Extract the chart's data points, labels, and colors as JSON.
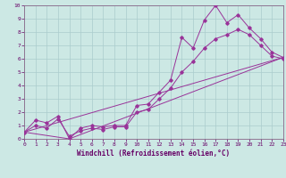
{
  "xlabel": "Windchill (Refroidissement éolien,°C)",
  "bg_color": "#cce8e4",
  "grid_color": "#aacccc",
  "line_color": "#993399",
  "xlim": [
    0,
    23
  ],
  "ylim": [
    0,
    10
  ],
  "xticks": [
    0,
    1,
    2,
    3,
    4,
    5,
    6,
    7,
    8,
    9,
    10,
    11,
    12,
    13,
    14,
    15,
    16,
    17,
    18,
    19,
    20,
    21,
    22,
    23
  ],
  "yticks": [
    0,
    1,
    2,
    3,
    4,
    5,
    6,
    7,
    8,
    9,
    10
  ],
  "series1_x": [
    0,
    1,
    2,
    3,
    4,
    5,
    6,
    7,
    8,
    9,
    10,
    11,
    12,
    13,
    14,
    15,
    16,
    17,
    18,
    19,
    20,
    21,
    22,
    23
  ],
  "series1_y": [
    0.5,
    1.4,
    1.2,
    1.7,
    0.0,
    0.8,
    1.0,
    0.9,
    1.0,
    1.0,
    2.5,
    2.6,
    3.5,
    4.4,
    7.6,
    6.8,
    8.9,
    10.0,
    8.7,
    9.3,
    8.3,
    7.5,
    6.5,
    6.1
  ],
  "series2_x": [
    0,
    1,
    2,
    3,
    4,
    5,
    6,
    7,
    8,
    9,
    10,
    11,
    12,
    13,
    14,
    15,
    16,
    17,
    18,
    19,
    20,
    21,
    22,
    23
  ],
  "series2_y": [
    0.5,
    1.0,
    0.8,
    1.5,
    0.2,
    0.6,
    0.8,
    0.7,
    0.9,
    0.9,
    2.0,
    2.2,
    3.0,
    3.8,
    5.0,
    5.8,
    6.8,
    7.5,
    7.8,
    8.2,
    7.8,
    7.0,
    6.2,
    6.0
  ],
  "series3_x": [
    0,
    23
  ],
  "series3_y": [
    0.5,
    6.1
  ],
  "series4_x": [
    0,
    4,
    23
  ],
  "series4_y": [
    0.5,
    0.0,
    6.1
  ]
}
